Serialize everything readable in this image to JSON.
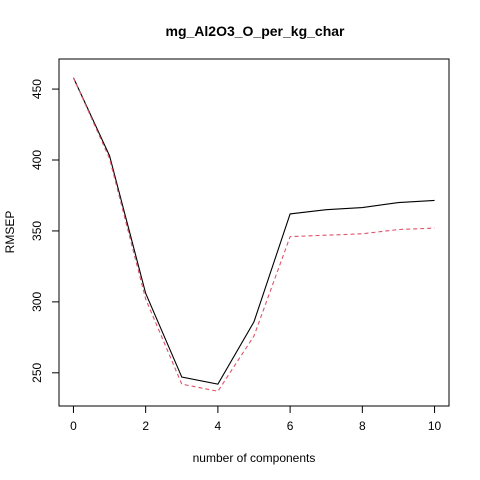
{
  "chart_data": {
    "type": "line",
    "title": "mg_Al2O3_O_per_kg_char",
    "xlabel": "number of components",
    "ylabel": "RMSEP",
    "x": [
      0,
      1,
      2,
      3,
      4,
      5,
      6,
      7,
      8,
      9,
      10
    ],
    "xlim": [
      -0.4,
      10.4
    ],
    "ylim": [
      226.6,
      471.2
    ],
    "xticks": [
      0,
      2,
      4,
      6,
      8,
      10
    ],
    "yticks": [
      250,
      300,
      350,
      400,
      450
    ],
    "grid": false,
    "legend": "none",
    "series": [
      {
        "color": "#000000",
        "dash": "solid",
        "values": [
          458,
          403,
          306,
          247,
          242,
          286,
          362,
          365,
          366.5,
          370,
          371.5
        ]
      },
      {
        "color": "#DF536B",
        "dash": "dashed",
        "values": [
          458,
          401,
          302,
          242,
          237,
          276,
          346,
          347,
          348,
          351,
          352
        ]
      }
    ]
  }
}
